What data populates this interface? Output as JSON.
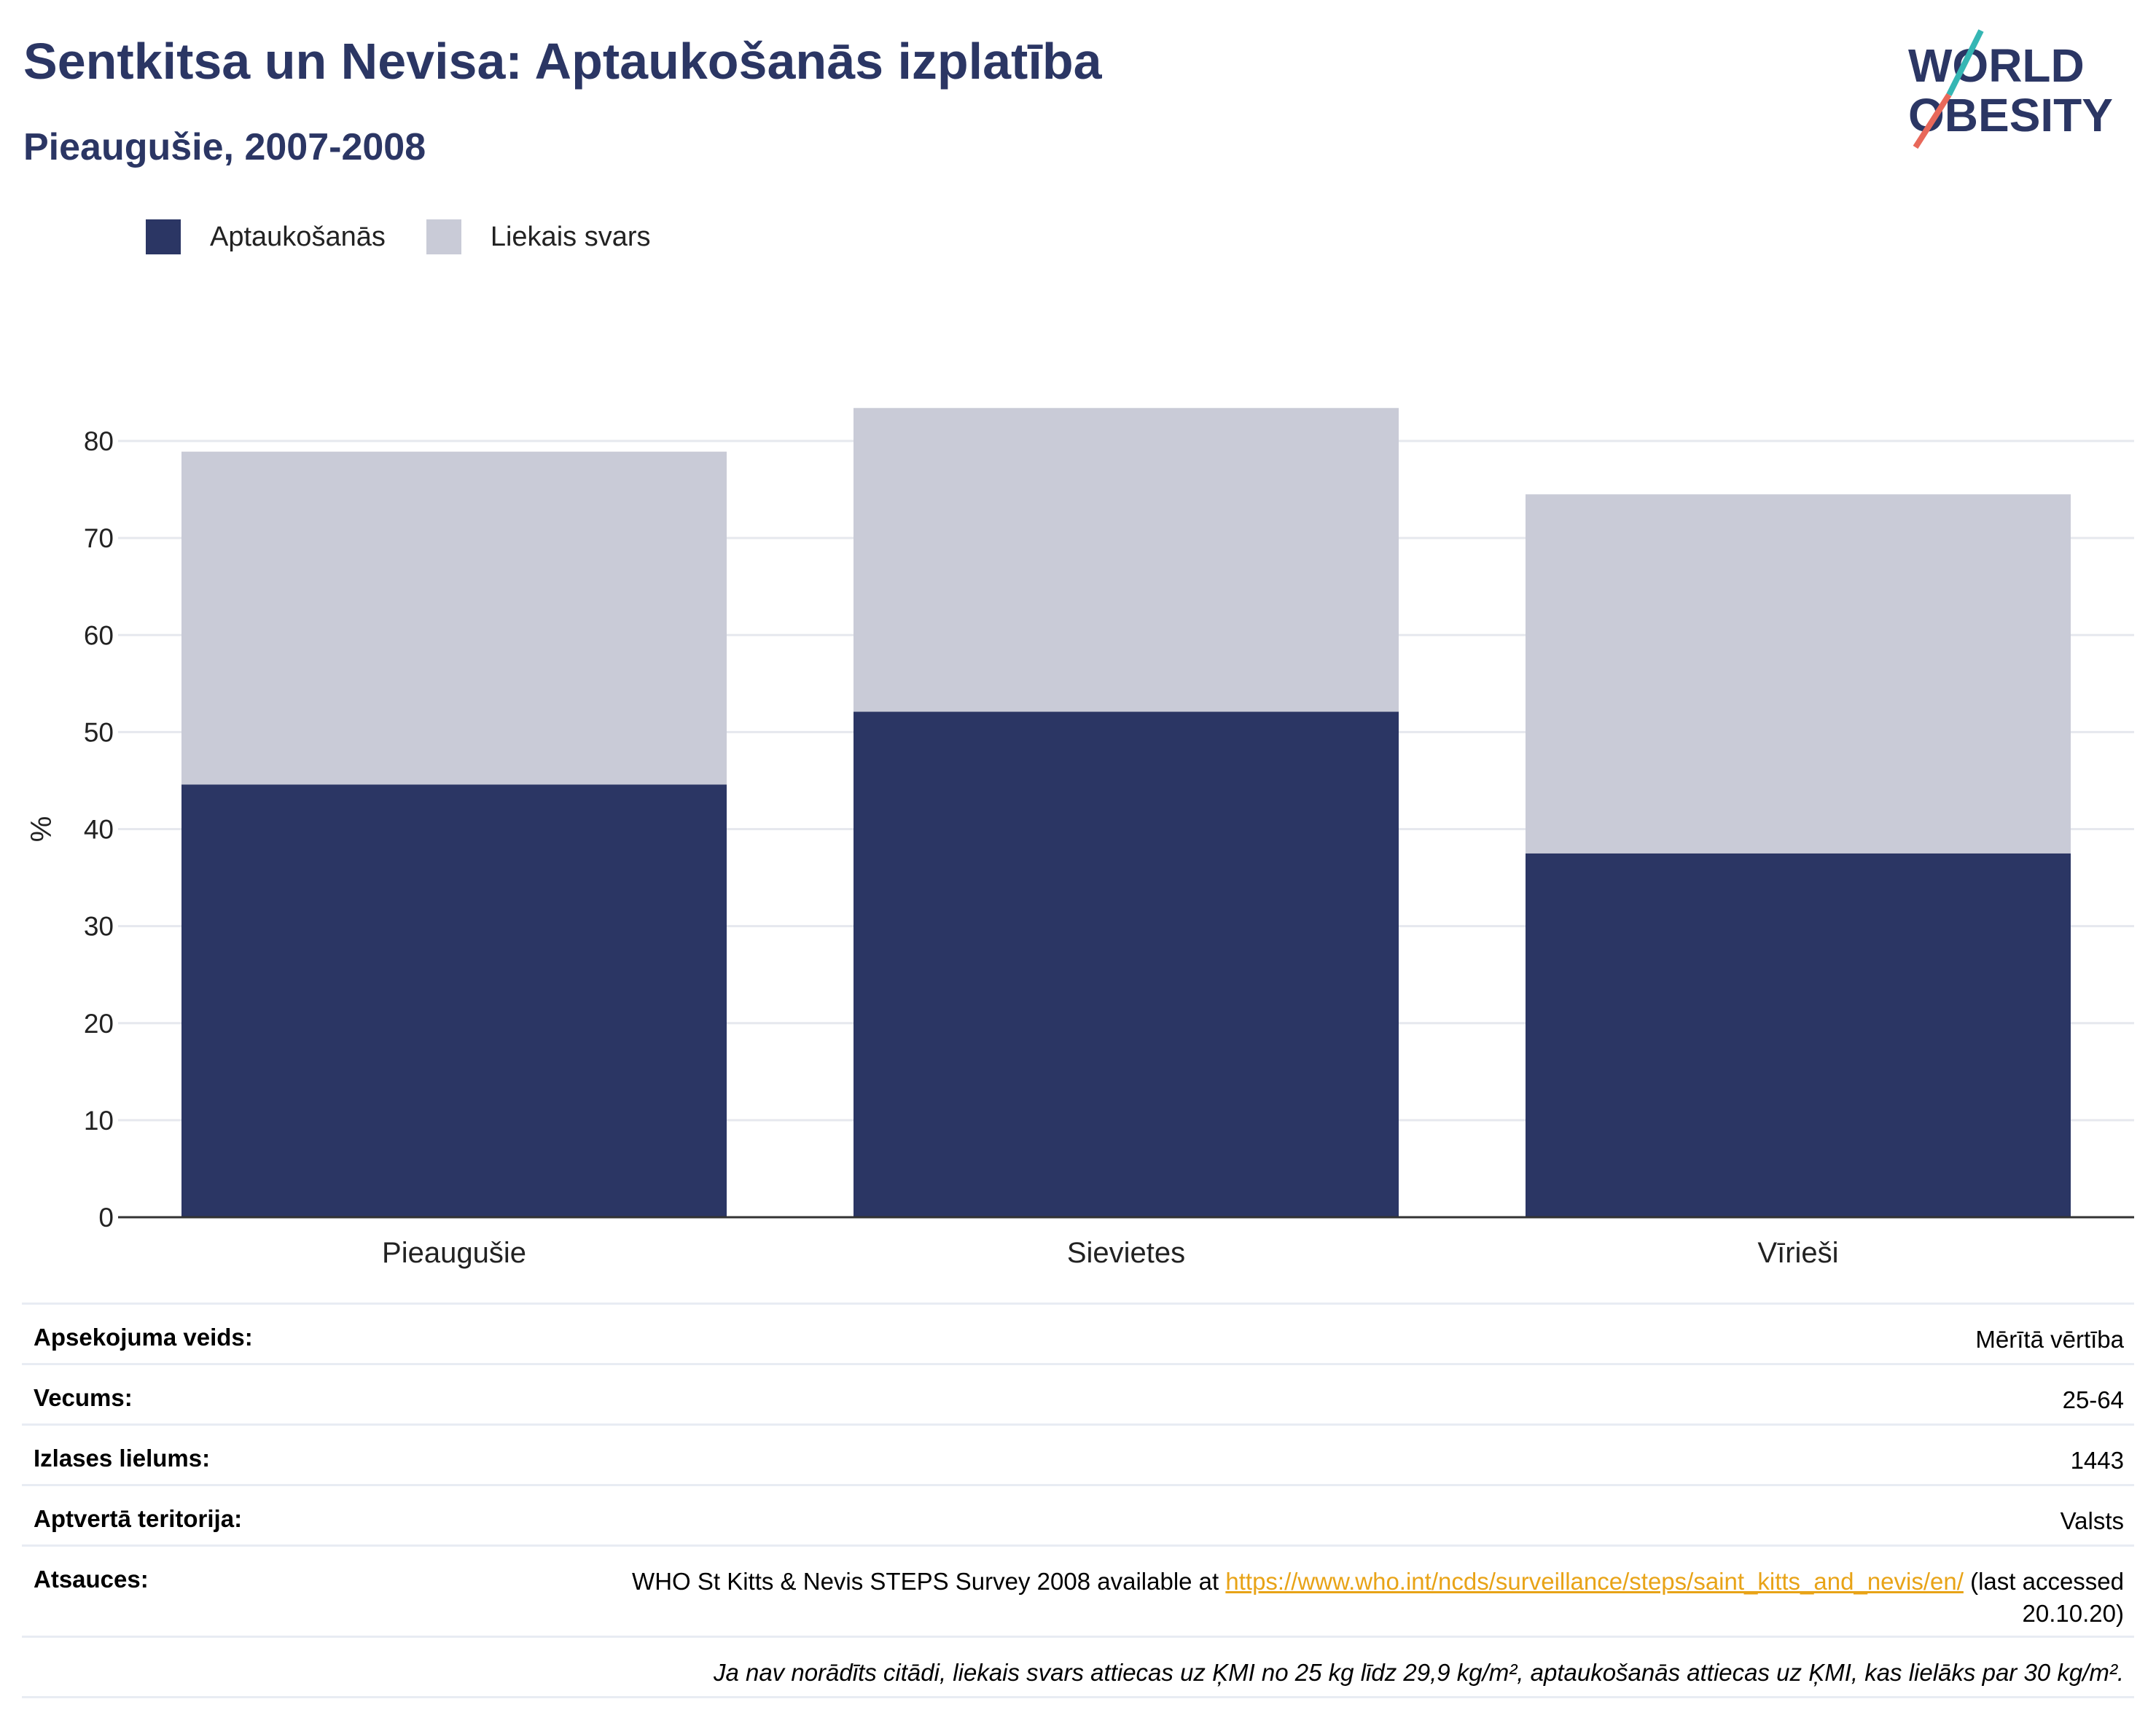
{
  "header": {
    "title": "Sentkitsa un Nevisa: Aptaukošanās izplatība",
    "subtitle": "Pieaugušie, 2007-2008"
  },
  "logo": {
    "line1": "WORLD",
    "line2": "OBESITY"
  },
  "legend": [
    {
      "label": "Aptaukošanās",
      "color": "#2b3664"
    },
    {
      "label": "Liekais svars",
      "color": "#c9cbd7"
    }
  ],
  "chart_data": {
    "type": "bar",
    "stacked": true,
    "categories": [
      "Pieaugušie",
      "Sievietes",
      "Vīrieši"
    ],
    "series": [
      {
        "name": "Aptaukošanās",
        "color": "#2b3664",
        "values": [
          44.6,
          52.1,
          37.5
        ]
      },
      {
        "name": "Liekais svars",
        "color": "#c9cbd7",
        "values": [
          34.3,
          31.3,
          37.0
        ]
      }
    ],
    "ylabel": "%",
    "ylim": [
      0,
      85
    ],
    "yticks": [
      0,
      10,
      20,
      30,
      40,
      50,
      60,
      70,
      80
    ],
    "grid": true,
    "legend_position": "top-left"
  },
  "info": {
    "survey_type_label": "Apsekojuma veids:",
    "survey_type_value": "Mērītā vērtība",
    "age_label": "Vecums:",
    "age_value": "25-64",
    "sample_label": "Izlases lielums:",
    "sample_value": "1443",
    "area_label": "Aptvertā teritorija:",
    "area_value": "Valsts",
    "refs_label": "Atsauces:",
    "refs_text_before": "WHO St Kitts & Nevis STEPS Survey 2008 available at ",
    "refs_link": "https://www.who.int/ncds/surveillance/steps/saint_kitts_and_nevis/en/",
    "refs_text_after": " (last accessed 20.10.20)",
    "note": "Ja nav norādīts citādi, liekais svars attiecas uz ĶMI no 25 kg līdz 29,9 kg/m², aptaukošanās attiecas uz ĶMI, kas lielāks par 30 kg/m²."
  }
}
